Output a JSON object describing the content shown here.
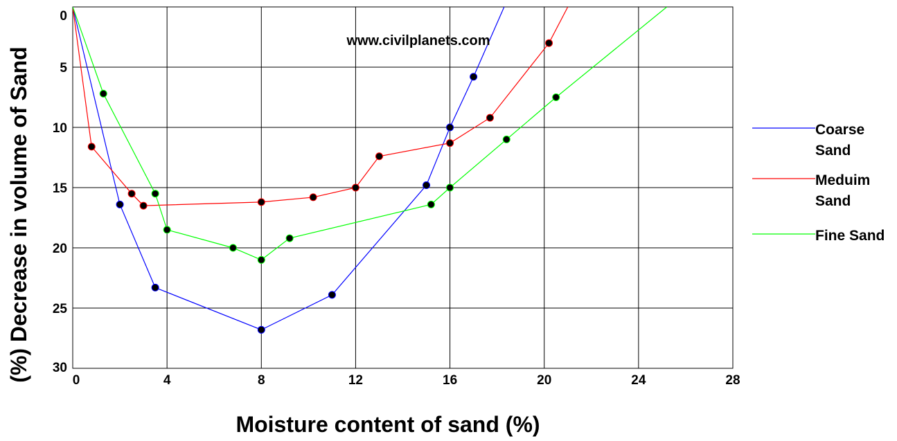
{
  "chart_data": {
    "type": "line",
    "watermark": "www.civilplanets.com",
    "xlabel": "Moisture content of sand (%)",
    "ylabel": "(%) Decrease in volume of Sand",
    "xlim": [
      0,
      28
    ],
    "ylim": [
      0,
      30
    ],
    "y_inverted": true,
    "grid": true,
    "legend_position": "right",
    "x_ticks": [
      "0",
      "4",
      "8",
      "12",
      "16",
      "20",
      "24",
      "28"
    ],
    "x_tick_values": [
      0,
      4,
      8,
      12,
      16,
      20,
      24,
      28
    ],
    "y_ticks": [
      "0",
      "5",
      "10",
      "15",
      "20",
      "25",
      "30"
    ],
    "y_tick_values": [
      0,
      5,
      10,
      15,
      20,
      25,
      30
    ],
    "series": [
      {
        "name": "Coarse Sand",
        "legend_lines": [
          "Coarse",
          "Sand"
        ],
        "color": "#0000ff",
        "points": [
          [
            0,
            0
          ],
          [
            2,
            16.4
          ],
          [
            3.5,
            23.3
          ],
          [
            8,
            26.8
          ],
          [
            11,
            23.9
          ],
          [
            15,
            14.8
          ],
          [
            16,
            10
          ],
          [
            17,
            5.8
          ],
          [
            18.3,
            0
          ]
        ]
      },
      {
        "name": "Meduim Sand",
        "legend_lines": [
          "Meduim",
          "Sand"
        ],
        "color": "#ff0000",
        "points": [
          [
            0,
            0
          ],
          [
            0.8,
            11.6
          ],
          [
            2.5,
            15.5
          ],
          [
            3,
            16.5
          ],
          [
            8,
            16.2
          ],
          [
            10.2,
            15.8
          ],
          [
            12,
            15
          ],
          [
            13,
            12.4
          ],
          [
            16,
            11.3
          ],
          [
            17.7,
            9.2
          ],
          [
            20.2,
            3
          ],
          [
            21,
            0
          ]
        ]
      },
      {
        "name": "Fine Sand",
        "legend_lines": [
          "Fine Sand"
        ],
        "color": "#00ff00",
        "points": [
          [
            0,
            0
          ],
          [
            1.3,
            7.2
          ],
          [
            3.5,
            15.5
          ],
          [
            4,
            18.5
          ],
          [
            6.8,
            20
          ],
          [
            8,
            21
          ],
          [
            9.2,
            19.2
          ],
          [
            15.2,
            16.4
          ],
          [
            16,
            15
          ],
          [
            18.4,
            11
          ],
          [
            20.5,
            7.5
          ],
          [
            25.2,
            0
          ]
        ]
      }
    ],
    "markers": {
      "Coarse Sand": [
        [
          2,
          16.4
        ],
        [
          3.5,
          23.3
        ],
        [
          8,
          26.8
        ],
        [
          11,
          23.9
        ],
        [
          15,
          14.8
        ],
        [
          16,
          10
        ],
        [
          17,
          5.8
        ]
      ],
      "Meduim Sand": [
        [
          0.8,
          11.6
        ],
        [
          2.5,
          15.5
        ],
        [
          3,
          16.5
        ],
        [
          8,
          16.2
        ],
        [
          10.2,
          15.8
        ],
        [
          12,
          15
        ],
        [
          13,
          12.4
        ],
        [
          16,
          11.3
        ],
        [
          17.7,
          9.2
        ],
        [
          20.2,
          3
        ]
      ],
      "Fine Sand": [
        [
          1.3,
          7.2
        ],
        [
          3.5,
          15.5
        ],
        [
          4,
          18.5
        ],
        [
          6.8,
          20
        ],
        [
          8,
          21
        ],
        [
          9.2,
          19.2
        ],
        [
          15.2,
          16.4
        ],
        [
          16,
          15
        ],
        [
          18.4,
          11
        ],
        [
          20.5,
          7.5
        ]
      ]
    },
    "marker_color": "#000000"
  }
}
